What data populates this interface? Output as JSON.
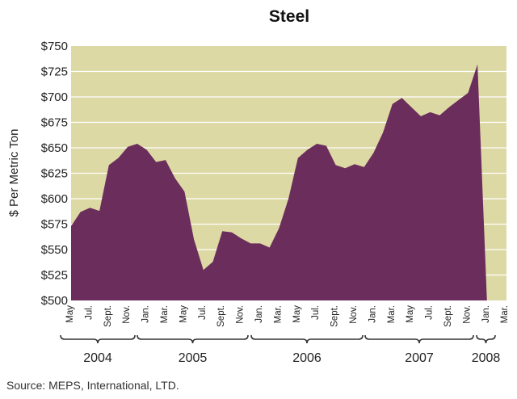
{
  "chart_data": {
    "type": "area",
    "title": "Steel",
    "ylabel": "$ Per Metric Ton",
    "xlabel": "",
    "ylim": [
      500,
      750
    ],
    "yticks": [
      "$750",
      "$725",
      "$700",
      "$675",
      "$650",
      "$625",
      "$600",
      "$575",
      "$550",
      "$525",
      "$500"
    ],
    "ytick_values": [
      750,
      725,
      700,
      675,
      650,
      625,
      600,
      575,
      550,
      525,
      500
    ],
    "x": [
      "2004-05",
      "2004-06",
      "2004-07",
      "2004-08",
      "2004-09",
      "2004-10",
      "2004-11",
      "2004-12",
      "2005-01",
      "2005-02",
      "2005-03",
      "2005-04",
      "2005-05",
      "2005-06",
      "2005-07",
      "2005-08",
      "2005-09",
      "2005-10",
      "2005-11",
      "2005-12",
      "2006-01",
      "2006-02",
      "2006-03",
      "2006-04",
      "2006-05",
      "2006-06",
      "2006-07",
      "2006-08",
      "2006-09",
      "2006-10",
      "2006-11",
      "2006-12",
      "2007-01",
      "2007-02",
      "2007-03",
      "2007-04",
      "2007-05",
      "2007-06",
      "2007-07",
      "2007-08",
      "2007-09",
      "2007-10",
      "2007-11",
      "2007-12",
      "2008-01",
      "2008-02"
    ],
    "series": [
      {
        "values": [
          573,
          587,
          591,
          588,
          633,
          640,
          651,
          654,
          648,
          636,
          638,
          620,
          607,
          560,
          530,
          538,
          568,
          567,
          561,
          556,
          556,
          552,
          571,
          600,
          640,
          648,
          654,
          652,
          633,
          630,
          634,
          631,
          645,
          665,
          693,
          699,
          690,
          681,
          685,
          682,
          690,
          697,
          704,
          732,
          500,
          500
        ]
      }
    ],
    "xtick_labels": [
      "May",
      "Jul.",
      "Sept.",
      "Nov.",
      "Jan.",
      "Mar.",
      "May",
      "Jul.",
      "Sept.",
      "Nov.",
      "Jan.",
      "Mar.",
      "May",
      "Jul.",
      "Sept.",
      "Nov.",
      "Jan.",
      "Mar.",
      "May",
      "Jul.",
      "Sept.",
      "Nov.",
      "Jan.",
      "Mar."
    ],
    "years": [
      "2004",
      "2005",
      "2006",
      "2007",
      "2008"
    ],
    "grid": true,
    "colors": {
      "area": "#6b2d5c",
      "plot_bg": "#ddd9a4"
    }
  },
  "source": "Source: MEPS, International, LTD."
}
